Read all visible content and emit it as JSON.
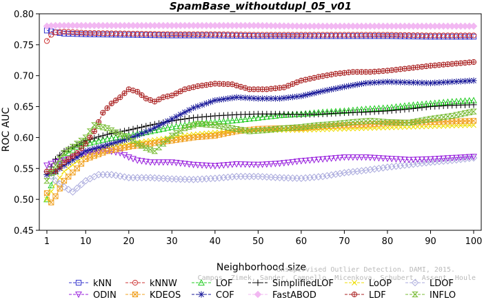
{
  "chart_data": {
    "type": "line",
    "title": "SpamBase_withoutdupl_05_v01",
    "xlabel": "Neighborhood size",
    "ylabel": "ROC AUC",
    "xlim": [
      1,
      100
    ],
    "ylim": [
      0.45,
      0.8
    ],
    "x_ticks": [
      1,
      10,
      20,
      30,
      40,
      50,
      60,
      70,
      80,
      90,
      100
    ],
    "y_ticks": [
      0.45,
      0.5,
      0.55,
      0.6,
      0.65,
      0.7,
      0.75,
      0.8
    ],
    "y_tick_labels": [
      "0.45",
      "0.50",
      "0.55",
      "0.60",
      "0.65",
      "0.70",
      "0.75",
      "0.80"
    ],
    "grid": false,
    "legend_position": "bottom",
    "watermark_lines": [
      "Campos, Zimek, Sander, Campello, Micenkova, Schubert, Assent, Houle",
      "Unsupervised Outlier Detection. DAMI, 2015."
    ],
    "series": [
      {
        "name": "kNN",
        "color": "#3333cc",
        "marker": "square",
        "points": [
          [
            1,
            0.773
          ],
          [
            3,
            0.77
          ],
          [
            5,
            0.768
          ],
          [
            10,
            0.767
          ],
          [
            20,
            0.766
          ],
          [
            30,
            0.765
          ],
          [
            40,
            0.765
          ],
          [
            50,
            0.764
          ],
          [
            60,
            0.764
          ],
          [
            70,
            0.764
          ],
          [
            80,
            0.764
          ],
          [
            90,
            0.763
          ],
          [
            100,
            0.763
          ]
        ]
      },
      {
        "name": "kNNW",
        "color": "#cc3333",
        "marker": "circle",
        "points": [
          [
            1,
            0.756
          ],
          [
            2,
            0.766
          ],
          [
            3,
            0.77
          ],
          [
            5,
            0.771
          ],
          [
            10,
            0.769
          ],
          [
            20,
            0.768
          ],
          [
            30,
            0.767
          ],
          [
            40,
            0.767
          ],
          [
            50,
            0.766
          ],
          [
            60,
            0.766
          ],
          [
            70,
            0.766
          ],
          [
            80,
            0.766
          ],
          [
            90,
            0.765
          ],
          [
            100,
            0.765
          ]
        ]
      },
      {
        "name": "LOF",
        "color": "#22cc22",
        "marker": "triangle-up",
        "points": [
          [
            1,
            0.5
          ],
          [
            3,
            0.545
          ],
          [
            5,
            0.57
          ],
          [
            8,
            0.585
          ],
          [
            10,
            0.59
          ],
          [
            15,
            0.598
          ],
          [
            20,
            0.603
          ],
          [
            25,
            0.61
          ],
          [
            30,
            0.617
          ],
          [
            35,
            0.622
          ],
          [
            40,
            0.625
          ],
          [
            45,
            0.628
          ],
          [
            50,
            0.632
          ],
          [
            55,
            0.636
          ],
          [
            60,
            0.638
          ],
          [
            65,
            0.641
          ],
          [
            70,
            0.643
          ],
          [
            75,
            0.646
          ],
          [
            80,
            0.648
          ],
          [
            85,
            0.652
          ],
          [
            90,
            0.655
          ],
          [
            95,
            0.658
          ],
          [
            100,
            0.66
          ]
        ]
      },
      {
        "name": "SimplifiedLOF",
        "color": "#000000",
        "marker": "plus",
        "points": [
          [
            1,
            0.54
          ],
          [
            3,
            0.565
          ],
          [
            5,
            0.578
          ],
          [
            8,
            0.588
          ],
          [
            10,
            0.595
          ],
          [
            15,
            0.605
          ],
          [
            20,
            0.612
          ],
          [
            25,
            0.62
          ],
          [
            30,
            0.627
          ],
          [
            35,
            0.632
          ],
          [
            40,
            0.635
          ],
          [
            45,
            0.637
          ],
          [
            50,
            0.638
          ],
          [
            55,
            0.638
          ],
          [
            60,
            0.637
          ],
          [
            65,
            0.638
          ],
          [
            70,
            0.64
          ],
          [
            75,
            0.641
          ],
          [
            80,
            0.643
          ],
          [
            85,
            0.646
          ],
          [
            90,
            0.65
          ],
          [
            95,
            0.652
          ],
          [
            100,
            0.653
          ]
        ]
      },
      {
        "name": "LoOP",
        "color": "#eedd00",
        "marker": "cross",
        "points": [
          [
            1,
            0.5
          ],
          [
            3,
            0.525
          ],
          [
            5,
            0.545
          ],
          [
            10,
            0.572
          ],
          [
            15,
            0.585
          ],
          [
            20,
            0.59
          ],
          [
            25,
            0.595
          ],
          [
            30,
            0.6
          ],
          [
            35,
            0.605
          ],
          [
            40,
            0.608
          ],
          [
            45,
            0.61
          ],
          [
            50,
            0.611
          ],
          [
            55,
            0.612
          ],
          [
            60,
            0.612
          ],
          [
            65,
            0.613
          ],
          [
            70,
            0.614
          ],
          [
            75,
            0.615
          ],
          [
            80,
            0.616
          ],
          [
            85,
            0.617
          ],
          [
            90,
            0.618
          ],
          [
            95,
            0.619
          ],
          [
            100,
            0.62
          ]
        ]
      },
      {
        "name": "LDOF",
        "color": "#aaaadd",
        "marker": "diamond",
        "points": [
          [
            1,
            0.545
          ],
          [
            3,
            0.53
          ],
          [
            5,
            0.52
          ],
          [
            7,
            0.512
          ],
          [
            10,
            0.53
          ],
          [
            13,
            0.54
          ],
          [
            16,
            0.54
          ],
          [
            20,
            0.535
          ],
          [
            25,
            0.535
          ],
          [
            30,
            0.533
          ],
          [
            35,
            0.532
          ],
          [
            40,
            0.534
          ],
          [
            45,
            0.537
          ],
          [
            50,
            0.537
          ],
          [
            55,
            0.535
          ],
          [
            60,
            0.534
          ],
          [
            65,
            0.537
          ],
          [
            70,
            0.543
          ],
          [
            75,
            0.547
          ],
          [
            80,
            0.552
          ],
          [
            85,
            0.556
          ],
          [
            90,
            0.56
          ],
          [
            95,
            0.563
          ],
          [
            100,
            0.567
          ]
        ]
      },
      {
        "name": "ODIN",
        "color": "#9922dd",
        "marker": "triangle-down",
        "points": [
          [
            1,
            0.555
          ],
          [
            3,
            0.56
          ],
          [
            6,
            0.565
          ],
          [
            10,
            0.575
          ],
          [
            14,
            0.58
          ],
          [
            18,
            0.575
          ],
          [
            20,
            0.568
          ],
          [
            22,
            0.563
          ],
          [
            25,
            0.56
          ],
          [
            30,
            0.56
          ],
          [
            35,
            0.556
          ],
          [
            40,
            0.554
          ],
          [
            45,
            0.557
          ],
          [
            50,
            0.556
          ],
          [
            55,
            0.558
          ],
          [
            60,
            0.562
          ],
          [
            65,
            0.565
          ],
          [
            70,
            0.568
          ],
          [
            75,
            0.568
          ],
          [
            80,
            0.566
          ],
          [
            85,
            0.564
          ],
          [
            90,
            0.565
          ],
          [
            95,
            0.567
          ],
          [
            100,
            0.569
          ]
        ]
      },
      {
        "name": "KDEOS",
        "color": "#f0a020",
        "marker": "square-x",
        "points": [
          [
            1,
            0.51
          ],
          [
            2,
            0.495
          ],
          [
            3,
            0.505
          ],
          [
            5,
            0.53
          ],
          [
            8,
            0.55
          ],
          [
            10,
            0.565
          ],
          [
            15,
            0.578
          ],
          [
            20,
            0.585
          ],
          [
            25,
            0.59
          ],
          [
            30,
            0.595
          ],
          [
            35,
            0.6
          ],
          [
            40,
            0.603
          ],
          [
            45,
            0.61
          ],
          [
            50,
            0.614
          ],
          [
            55,
            0.615
          ],
          [
            60,
            0.615
          ],
          [
            65,
            0.618
          ],
          [
            70,
            0.62
          ],
          [
            75,
            0.621
          ],
          [
            80,
            0.623
          ],
          [
            85,
            0.624
          ],
          [
            90,
            0.625
          ],
          [
            95,
            0.626
          ],
          [
            100,
            0.627
          ]
        ]
      },
      {
        "name": "COF",
        "color": "#1a1a99",
        "marker": "star",
        "points": [
          [
            1,
            0.54
          ],
          [
            3,
            0.545
          ],
          [
            5,
            0.555
          ],
          [
            8,
            0.568
          ],
          [
            10,
            0.578
          ],
          [
            15,
            0.588
          ],
          [
            20,
            0.598
          ],
          [
            25,
            0.612
          ],
          [
            30,
            0.63
          ],
          [
            35,
            0.648
          ],
          [
            40,
            0.66
          ],
          [
            45,
            0.665
          ],
          [
            50,
            0.663
          ],
          [
            55,
            0.663
          ],
          [
            60,
            0.667
          ],
          [
            65,
            0.675
          ],
          [
            70,
            0.682
          ],
          [
            75,
            0.688
          ],
          [
            80,
            0.69
          ],
          [
            85,
            0.689
          ],
          [
            90,
            0.688
          ],
          [
            95,
            0.69
          ],
          [
            100,
            0.692
          ]
        ]
      },
      {
        "name": "FastABOD",
        "color": "#f2b8f2",
        "marker": "diamond-filled",
        "points": [
          [
            1,
            0.78
          ],
          [
            3,
            0.781
          ],
          [
            5,
            0.781
          ],
          [
            10,
            0.781
          ],
          [
            20,
            0.781
          ],
          [
            30,
            0.781
          ],
          [
            40,
            0.781
          ],
          [
            50,
            0.781
          ],
          [
            60,
            0.78
          ],
          [
            70,
            0.78
          ],
          [
            80,
            0.78
          ],
          [
            90,
            0.78
          ],
          [
            100,
            0.78
          ]
        ]
      },
      {
        "name": "LDF",
        "color": "#aa2222",
        "marker": "circle-plus",
        "points": [
          [
            1,
            0.545
          ],
          [
            3,
            0.545
          ],
          [
            5,
            0.56
          ],
          [
            8,
            0.575
          ],
          [
            10,
            0.59
          ],
          [
            12,
            0.61
          ],
          [
            14,
            0.64
          ],
          [
            16,
            0.655
          ],
          [
            18,
            0.665
          ],
          [
            20,
            0.678
          ],
          [
            22,
            0.674
          ],
          [
            24,
            0.663
          ],
          [
            26,
            0.658
          ],
          [
            28,
            0.665
          ],
          [
            30,
            0.668
          ],
          [
            33,
            0.678
          ],
          [
            36,
            0.683
          ],
          [
            40,
            0.687
          ],
          [
            44,
            0.686
          ],
          [
            48,
            0.678
          ],
          [
            52,
            0.678
          ],
          [
            56,
            0.681
          ],
          [
            60,
            0.692
          ],
          [
            64,
            0.698
          ],
          [
            68,
            0.703
          ],
          [
            72,
            0.706
          ],
          [
            76,
            0.706
          ],
          [
            80,
            0.708
          ],
          [
            85,
            0.712
          ],
          [
            90,
            0.716
          ],
          [
            95,
            0.719
          ],
          [
            100,
            0.722
          ]
        ]
      },
      {
        "name": "INFLO",
        "color": "#77bb33",
        "marker": "hourglass",
        "points": [
          [
            1,
            0.53
          ],
          [
            3,
            0.555
          ],
          [
            5,
            0.575
          ],
          [
            8,
            0.59
          ],
          [
            10,
            0.6
          ],
          [
            12,
            0.62
          ],
          [
            15,
            0.615
          ],
          [
            18,
            0.605
          ],
          [
            20,
            0.6
          ],
          [
            22,
            0.59
          ],
          [
            24,
            0.583
          ],
          [
            26,
            0.578
          ],
          [
            28,
            0.59
          ],
          [
            30,
            0.603
          ],
          [
            33,
            0.615
          ],
          [
            36,
            0.622
          ],
          [
            40,
            0.62
          ],
          [
            44,
            0.615
          ],
          [
            48,
            0.61
          ],
          [
            52,
            0.612
          ],
          [
            56,
            0.615
          ],
          [
            60,
            0.617
          ],
          [
            64,
            0.62
          ],
          [
            68,
            0.622
          ],
          [
            72,
            0.625
          ],
          [
            76,
            0.627
          ],
          [
            80,
            0.625
          ],
          [
            85,
            0.624
          ],
          [
            90,
            0.63
          ],
          [
            95,
            0.635
          ],
          [
            100,
            0.642
          ]
        ]
      }
    ],
    "legend_rows": [
      [
        "kNN",
        "kNNW",
        "LOF",
        "SimplifiedLOF",
        "LoOP",
        "LDOF"
      ],
      [
        "ODIN",
        "KDEOS",
        "COF",
        "FastABOD",
        "LDF",
        "INFLO"
      ]
    ]
  }
}
